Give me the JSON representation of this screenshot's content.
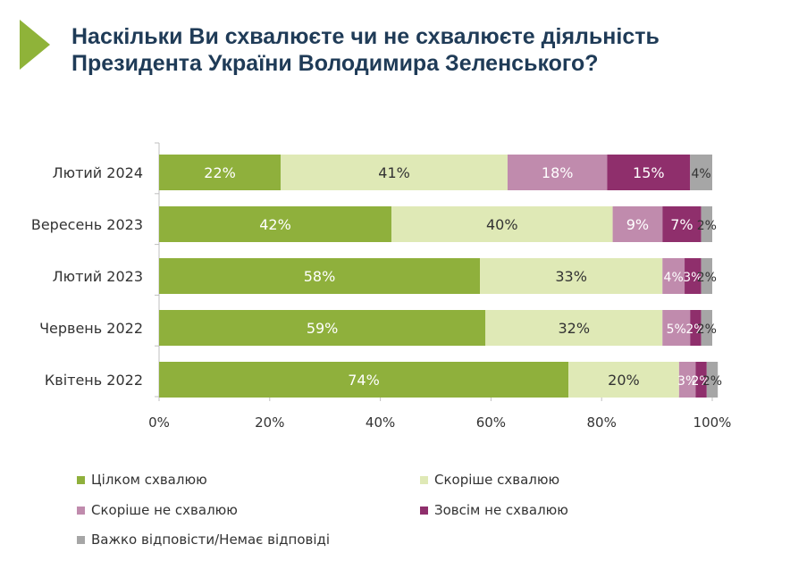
{
  "title": {
    "line1": "Наскільки Ви схвалюєте чи не схвалюєте діяльність",
    "line2": "Президента України Володимира Зеленського?"
  },
  "colors": {
    "accent": "#8fb339",
    "title": "#1f3b57",
    "axis": "#bfbfbf"
  },
  "chart_data": {
    "type": "bar",
    "orientation": "horizontal",
    "stacked": true,
    "categories": [
      "Лютий 2024",
      "Вересень 2023",
      "Лютий 2023",
      "Червень 2022",
      "Квітень 2022"
    ],
    "series": [
      {
        "name": "Цілком схвалюю",
        "color": "#8fb03c",
        "label_color": "#ffffff",
        "values": [
          22,
          42,
          58,
          59,
          74
        ]
      },
      {
        "name": "Скоріше схвалюю",
        "color": "#dfe9b6",
        "label_color": "#333333",
        "values": [
          41,
          40,
          33,
          32,
          20
        ]
      },
      {
        "name": "Скоріше не схвалюю",
        "color": "#c08bad",
        "label_color": "#ffffff",
        "values": [
          18,
          9,
          4,
          5,
          3
        ]
      },
      {
        "name": "Зовсім не схвалюю",
        "color": "#8f2f6c",
        "label_color": "#ffffff",
        "values": [
          15,
          7,
          3,
          2,
          2
        ]
      },
      {
        "name": "Важко відповісти/Немає відповіді",
        "color": "#a6a6a6",
        "label_color": "#333333",
        "values": [
          4,
          2,
          2,
          2,
          2
        ]
      }
    ],
    "xlim": [
      0,
      100
    ],
    "x_ticks": [
      "0%",
      "20%",
      "40%",
      "60%",
      "80%",
      "100%"
    ],
    "value_suffix": "%",
    "legend_position": "bottom",
    "grid": false
  }
}
